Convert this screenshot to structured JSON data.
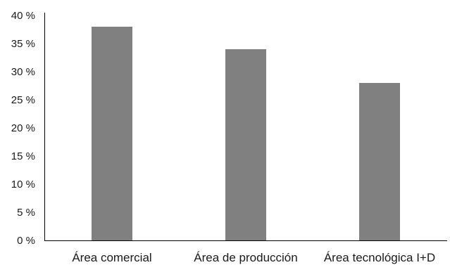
{
  "chart_data": {
    "type": "bar",
    "title": "",
    "xlabel": "",
    "ylabel": "",
    "categories": [
      "Área comercial",
      "Área de producción",
      "Área tecnológica I+D"
    ],
    "values": [
      38,
      34,
      28
    ],
    "ylim": [
      0,
      40
    ],
    "yticks": [
      {
        "value": 0,
        "label": "0 %"
      },
      {
        "value": 5,
        "label": "5 %"
      },
      {
        "value": 10,
        "label": "10 %"
      },
      {
        "value": 15,
        "label": "15 %"
      },
      {
        "value": 20,
        "label": "20 %"
      },
      {
        "value": 25,
        "label": "25 %"
      },
      {
        "value": 30,
        "label": "30 %"
      },
      {
        "value": 35,
        "label": "35 %"
      },
      {
        "value": 40,
        "label": "40 %"
      }
    ],
    "grid": false,
    "legend": "none",
    "bar_color": "#808080"
  }
}
